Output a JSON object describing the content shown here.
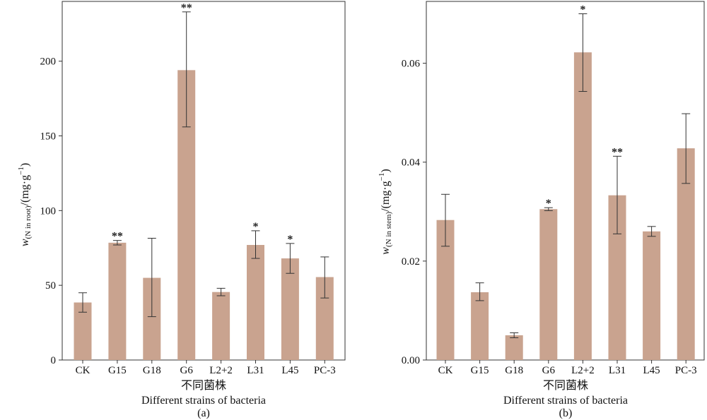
{
  "figure": {
    "caption_cn": "不同菌株",
    "caption_en": "Different strains of bacteria"
  },
  "chart_data": [
    {
      "type": "bar",
      "panel_label": "(a)",
      "xlabel_cn": "不同菌株",
      "xlabel_en": "Different strains of bacteria",
      "ylabel": {
        "main": "w",
        "sub": "(N in root)",
        "unit": "/(mg·g",
        "exp": "−1",
        "close": ")"
      },
      "categories": [
        "CK",
        "G15",
        "G18",
        "G6",
        "L2+2",
        "L31",
        "L45",
        "PC-3"
      ],
      "values": [
        38.5,
        78.5,
        55,
        194,
        45.5,
        77,
        68,
        55.5
      ],
      "error_low": [
        32,
        77,
        29,
        156,
        43,
        68,
        58,
        41.5
      ],
      "error_high": [
        45,
        80,
        81.5,
        233,
        48,
        86.5,
        78,
        69
      ],
      "significance": [
        "",
        "**",
        "",
        "**",
        "",
        "*",
        "*",
        ""
      ],
      "ylim": [
        0,
        240
      ],
      "yticks": [
        0,
        50,
        100,
        150,
        200
      ],
      "ytick_labels": [
        "0",
        "50",
        "100",
        "150",
        "200"
      ],
      "bar_color": "#c9a38f",
      "grid": false
    },
    {
      "type": "bar",
      "panel_label": "(b)",
      "xlabel_cn": "不同菌株",
      "xlabel_en": "Different strains of bacteria",
      "ylabel": {
        "main": "w",
        "sub": "(N in stem)",
        "unit": "/(mg·g",
        "exp": "−1",
        "close": ")"
      },
      "categories": [
        "CK",
        "G15",
        "G18",
        "G6",
        "L2+2",
        "L31",
        "L45",
        "PC-3"
      ],
      "values": [
        0.0283,
        0.0137,
        0.005,
        0.0305,
        0.0622,
        0.0333,
        0.026,
        0.0428
      ],
      "error_low": [
        0.023,
        0.012,
        0.0045,
        0.0302,
        0.0543,
        0.0255,
        0.025,
        0.0357
      ],
      "error_high": [
        0.0335,
        0.0156,
        0.0055,
        0.0308,
        0.07,
        0.0412,
        0.027,
        0.0498
      ],
      "significance": [
        "",
        "",
        "",
        "*",
        "*",
        "**",
        "",
        ""
      ],
      "ylim": [
        0,
        0.0725
      ],
      "yticks": [
        0,
        0.02,
        0.04,
        0.06
      ],
      "ytick_labels": [
        "0.00",
        "0.02",
        "0.04",
        "0.06"
      ],
      "bar_color": "#c9a38f",
      "grid": false
    }
  ]
}
